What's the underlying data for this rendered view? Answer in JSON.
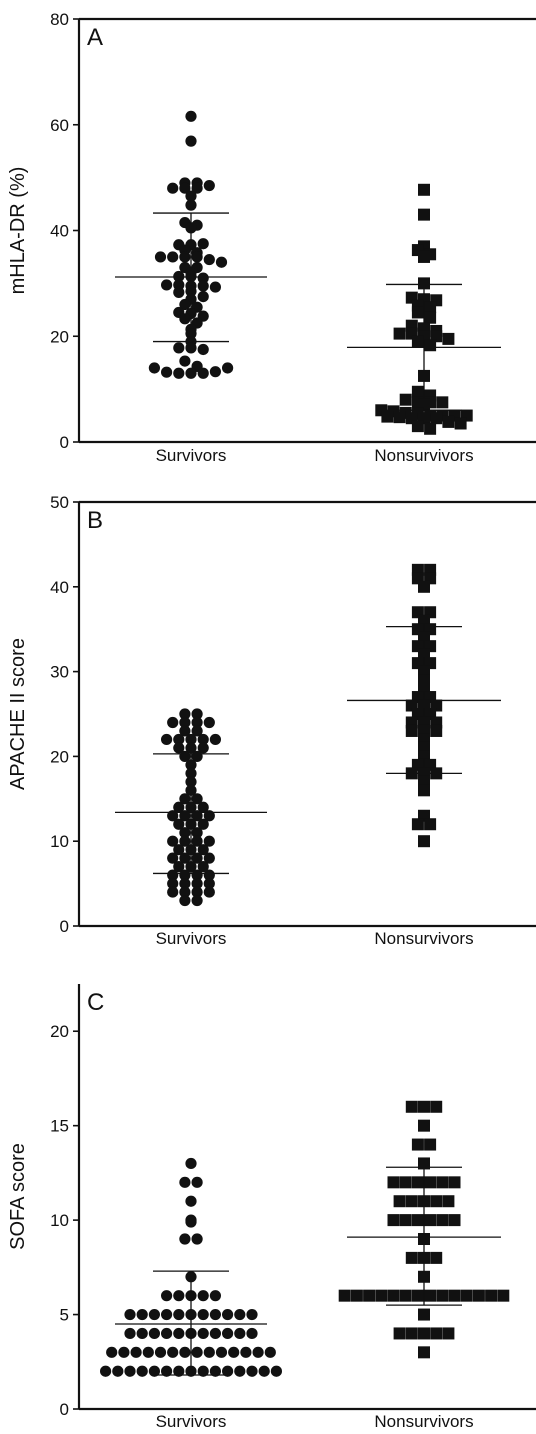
{
  "chart_data": [
    {
      "type": "scatter",
      "panel_label": "A",
      "ylabel": "mHLA-DR (%)",
      "ylim": [
        0,
        80
      ],
      "yticks": [
        0,
        20,
        40,
        60,
        80
      ],
      "categories": [
        "Survivors",
        "Nonsurvivors"
      ],
      "series": [
        {
          "category": "Survivors",
          "marker": "circle",
          "mean": 31.2,
          "sd_upper": 43.3,
          "sd_lower": 19.0,
          "values": [
            61.6,
            56.9,
            49.0,
            49.0,
            48.0,
            48.0,
            48.0,
            48.5,
            46.5,
            44.8,
            41.5,
            41.0,
            40.5,
            37.3,
            37.3,
            37.5,
            36.3,
            35.8,
            35.0,
            35.0,
            35.0,
            35.0,
            34.5,
            34.0,
            33.0,
            33.0,
            32.0,
            31.3,
            31.3,
            31.0,
            29.7,
            29.7,
            29.5,
            29.5,
            29.3,
            28.3,
            28.5,
            27.0,
            27.5,
            26.0,
            25.5,
            24.5,
            24.3,
            23.8,
            23.3,
            22.5,
            21.3,
            20.5,
            19.0,
            17.8,
            17.8,
            17.5,
            15.3,
            14.3,
            14.0,
            13.2,
            13.0,
            13.0,
            13.0,
            13.3,
            14.0
          ]
        },
        {
          "category": "Nonsurvivors",
          "marker": "square",
          "mean": 17.9,
          "sd_upper": 29.8,
          "sd_lower": 6.0,
          "values": [
            47.7,
            43.0,
            37.0,
            36.3,
            35.5,
            35.0,
            30.0,
            27.3,
            27.0,
            26.8,
            25.8,
            25.5,
            24.5,
            23.5,
            22.0,
            21.5,
            21.0,
            20.5,
            20.5,
            20.0,
            20.0,
            19.5,
            19.0,
            18.3,
            12.5,
            9.5,
            8.8,
            8.0,
            7.5,
            7.5,
            7.5,
            7.0,
            6.0,
            5.8,
            5.5,
            5.3,
            5.0,
            5.0,
            5.0,
            5.0,
            4.8,
            4.7,
            4.5,
            4.5,
            4.5,
            3.8,
            3.5,
            3.0,
            2.5
          ]
        }
      ]
    },
    {
      "type": "scatter",
      "panel_label": "B",
      "ylabel": "APACHE II score",
      "ylim": [
        0,
        50
      ],
      "yticks": [
        0,
        10,
        20,
        30,
        40,
        50
      ],
      "categories": [
        "Survivors",
        "Nonsurvivors"
      ],
      "series": [
        {
          "category": "Survivors",
          "marker": "circle",
          "mean": 13.4,
          "sd_upper": 20.3,
          "sd_lower": 6.2,
          "values": [
            25,
            25,
            24,
            24,
            24,
            24,
            23,
            23,
            22,
            22,
            22,
            22,
            22,
            21,
            21,
            21,
            20,
            20,
            19,
            18,
            17,
            16,
            15,
            15,
            14,
            14,
            14,
            13,
            13,
            13,
            13,
            12,
            12,
            12,
            11,
            11,
            10,
            10,
            10,
            10,
            9,
            9,
            9,
            8,
            8,
            8,
            8,
            7,
            7,
            7,
            6,
            6,
            6,
            6,
            5,
            5,
            5,
            5,
            4,
            4,
            4,
            4,
            3,
            3
          ]
        },
        {
          "category": "Nonsurvivors",
          "marker": "square",
          "mean": 26.6,
          "sd_upper": 35.3,
          "sd_lower": 18.0,
          "values": [
            42,
            42,
            41,
            41,
            40,
            37,
            37,
            36,
            35,
            35,
            34,
            33,
            33,
            32,
            31,
            31,
            30,
            29,
            28,
            27,
            27,
            26,
            26,
            26,
            25,
            25,
            24,
            24,
            24,
            23,
            23,
            23,
            22,
            21,
            20,
            19,
            19,
            18,
            18,
            18,
            17,
            16,
            13,
            12,
            12,
            10
          ]
        }
      ]
    },
    {
      "type": "scatter",
      "panel_label": "C",
      "ylabel": "SOFA score",
      "ylim": [
        0,
        22.5
      ],
      "yticks": [
        0,
        5,
        10,
        15,
        20
      ],
      "categories": [
        "Survivors",
        "Nonsurvivors"
      ],
      "series": [
        {
          "category": "Survivors",
          "marker": "circle",
          "mean": 4.5,
          "sd_upper": 7.3,
          "sd_lower": 1.8,
          "values": [
            13,
            12,
            12,
            11,
            10,
            9.9,
            9,
            9,
            7,
            6,
            6,
            6,
            6,
            6,
            5,
            5,
            5,
            5,
            5,
            5,
            5,
            5,
            5,
            5,
            5,
            4,
            4,
            4,
            4,
            4,
            4,
            4,
            4,
            4,
            4,
            4,
            3,
            3,
            3,
            3,
            3,
            3,
            3,
            3,
            3,
            3,
            3,
            3,
            3,
            3,
            2,
            2,
            2,
            2,
            2,
            2,
            2,
            2,
            2,
            2,
            2,
            2,
            2,
            2,
            2
          ]
        },
        {
          "category": "Nonsurvivors",
          "marker": "square",
          "mean": 9.1,
          "sd_upper": 12.8,
          "sd_lower": 5.5,
          "values": [
            16,
            16,
            16,
            15,
            14,
            14,
            13,
            12,
            12,
            12,
            12,
            12,
            12,
            11,
            11,
            11,
            11,
            11,
            10,
            10,
            10,
            10,
            10,
            10,
            9,
            8,
            8,
            8,
            7,
            6,
            6,
            6,
            6,
            6,
            6,
            6,
            6,
            6,
            6,
            6,
            6,
            6,
            6,
            5,
            4,
            4,
            4,
            4,
            4,
            3
          ]
        }
      ]
    }
  ]
}
